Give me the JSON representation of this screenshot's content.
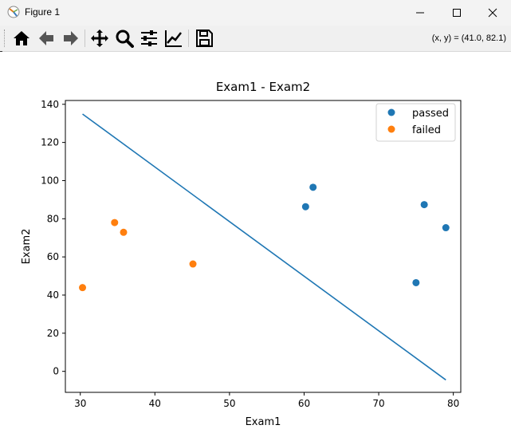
{
  "window": {
    "title": "Figure 1"
  },
  "toolbar": {
    "buttons": [
      "home-icon",
      "back-icon",
      "forward-icon",
      "pan-icon",
      "zoom-icon",
      "configure-subplots-icon",
      "edit-axis-icon",
      "save-icon"
    ],
    "coords": "(x, y) = (41.0, 82.1)"
  },
  "chart_data": {
    "type": "scatter",
    "title": "Exam1 - Exam2",
    "xlabel": "Exam1",
    "ylabel": "Exam2",
    "xlim": [
      28,
      81
    ],
    "ylim": [
      -11,
      142
    ],
    "xticks": [
      30,
      40,
      50,
      60,
      70,
      80
    ],
    "yticks": [
      0,
      20,
      40,
      60,
      80,
      100,
      120,
      140
    ],
    "legend_position": "top-right",
    "series": [
      {
        "name": "passed",
        "color": "#1f77b4",
        "points": [
          [
            60.2,
            86.3
          ],
          [
            61.2,
            96.5
          ],
          [
            75.0,
            46.5
          ],
          [
            76.1,
            87.4
          ],
          [
            79.0,
            75.3
          ]
        ]
      },
      {
        "name": "failed",
        "color": "#ff7f0e",
        "points": [
          [
            30.3,
            43.9
          ],
          [
            34.6,
            78.0
          ],
          [
            35.8,
            72.9
          ],
          [
            45.1,
            56.3
          ]
        ]
      }
    ],
    "line": {
      "color": "#1f77b4",
      "points": [
        [
          30.3,
          134.9
        ],
        [
          79.0,
          -4.5
        ]
      ]
    }
  }
}
